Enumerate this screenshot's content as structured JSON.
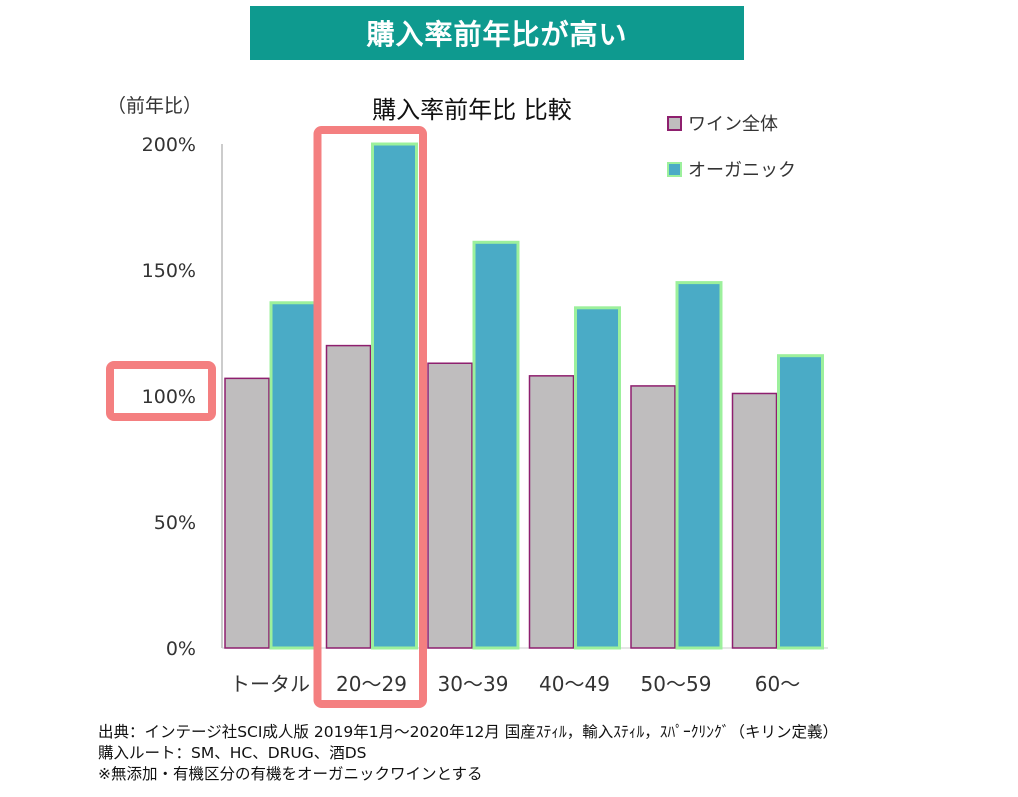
{
  "banner": {
    "text": "購入率前年比が高い"
  },
  "chart_data": {
    "type": "bar",
    "title": "購入率前年比 比較",
    "ylabel": "（前年比）",
    "xlabel": "",
    "categories": [
      "トータル",
      "20～29",
      "30～39",
      "40～49",
      "50～59",
      "60～"
    ],
    "series": [
      {
        "name": "ワイン全体",
        "values": [
          1.07,
          1.2,
          1.13,
          1.08,
          1.04,
          1.01
        ],
        "fill": "#bfbdbe",
        "stroke": "#8e1f6e"
      },
      {
        "name": "オーガニック",
        "values": [
          1.37,
          2.0,
          1.61,
          1.35,
          1.45,
          1.16
        ],
        "fill": "#4aabc6",
        "stroke": "#9cf09c"
      }
    ],
    "ylim": [
      0,
      2.0
    ],
    "yticks": [
      "0%",
      "50%",
      "100%",
      "150%",
      "200%"
    ],
    "legend_position": "top-right",
    "grid": false,
    "highlight": {
      "category": "20～29",
      "ytick": "100%",
      "color": "#f47f80"
    }
  },
  "notes": [
    "出典：インテージ社SCI成人版  2019年1月～2020年12月  国産ｽﾃｨﾙ，輸入ｽﾃｨﾙ，ｽﾊﾟｰｸﾘﾝｸﾞ（キリン定義）",
    "購入ルート：SM、HC、DRUG、酒DS",
    "※無添加・有機区分の有機をオーガニックワインとする"
  ]
}
